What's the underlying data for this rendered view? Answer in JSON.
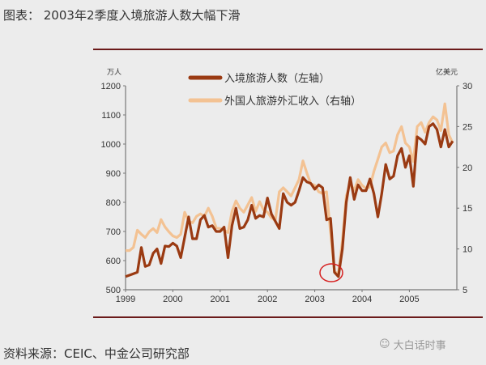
{
  "title": "图表：  2003年2季度入境旅游人数大幅下滑",
  "source": "资料来源：CEIC、中金公司研究部",
  "watermark": "大白话时事",
  "colors": {
    "arrivals": "#9a3a12",
    "receipts": "#f3c293",
    "frame": "#6b1a1a",
    "highlight": "#d62020"
  },
  "chart_data": {
    "type": "line",
    "title": "2003年2季度入境旅游人数大幅下滑",
    "left_unit": "万人",
    "right_unit": "亿美元",
    "ylim_left": [
      500,
      1200
    ],
    "ylim_right": [
      5,
      30
    ],
    "left_ticks": [
      "500",
      "600",
      "700",
      "800",
      "900",
      "1000",
      "1100",
      "1200"
    ],
    "right_ticks": [
      "5",
      "10",
      "15",
      "20",
      "25",
      "30"
    ],
    "x_ticks": [
      "1999",
      "2000",
      "2001",
      "2002",
      "2003",
      "2004",
      "2005"
    ],
    "x_start": "1999-01",
    "frequency": "monthly",
    "annotation": "2003 May-Jun trough circled",
    "series": [
      {
        "name": "入境旅游人数（左轴）",
        "axis": "left",
        "values": [
          545,
          550,
          555,
          560,
          645,
          580,
          585,
          625,
          640,
          590,
          650,
          648,
          660,
          650,
          610,
          680,
          750,
          675,
          675,
          740,
          755,
          715,
          720,
          700,
          700,
          715,
          610,
          720,
          780,
          710,
          715,
          740,
          790,
          745,
          755,
          750,
          815,
          760,
          735,
          710,
          830,
          800,
          790,
          800,
          840,
          885,
          870,
          865,
          845,
          860,
          850,
          740,
          745,
          560,
          545,
          640,
          800,
          885,
          810,
          860,
          840,
          840,
          880,
          830,
          750,
          830,
          930,
          880,
          890,
          960,
          985,
          920,
          960,
          855,
          1025,
          1015,
          1000,
          1060,
          1070,
          1050,
          990,
          1050,
          990,
          1010
        ]
      },
      {
        "name": "外国人旅游外汇收入（右轴）",
        "axis": "right",
        "values": [
          9.8,
          9.8,
          10.2,
          12.3,
          11.8,
          11.4,
          12.1,
          12.5,
          12.0,
          13.6,
          12.7,
          12.1,
          11.6,
          11.4,
          11.8,
          14.5,
          13.4,
          13.2,
          14.0,
          14.3,
          14.0,
          15.0,
          14.0,
          12.6,
          12.5,
          12.3,
          12.0,
          14.6,
          15.9,
          15.0,
          14.5,
          15.4,
          16.3,
          14.6,
          15.8,
          14.8,
          14.5,
          13.8,
          13.5,
          17.0,
          17.5,
          17.0,
          16.5,
          17.5,
          18.5,
          20.8,
          19.3,
          18.0,
          17.8,
          17.0,
          16.8,
          17.0,
          12.0,
          7.2,
          7.0,
          11.0,
          16.5,
          18.0,
          17.2,
          18.5,
          17.8,
          17.4,
          17.6,
          19.5,
          21.0,
          22.5,
          23.0,
          21.8,
          22.0,
          24.0,
          25.0,
          23.0,
          22.5,
          20.7,
          25.0,
          25.5,
          24.3,
          25.5,
          26.2,
          25.8,
          24.5,
          27.8,
          24.0,
          23.0
        ]
      }
    ]
  }
}
